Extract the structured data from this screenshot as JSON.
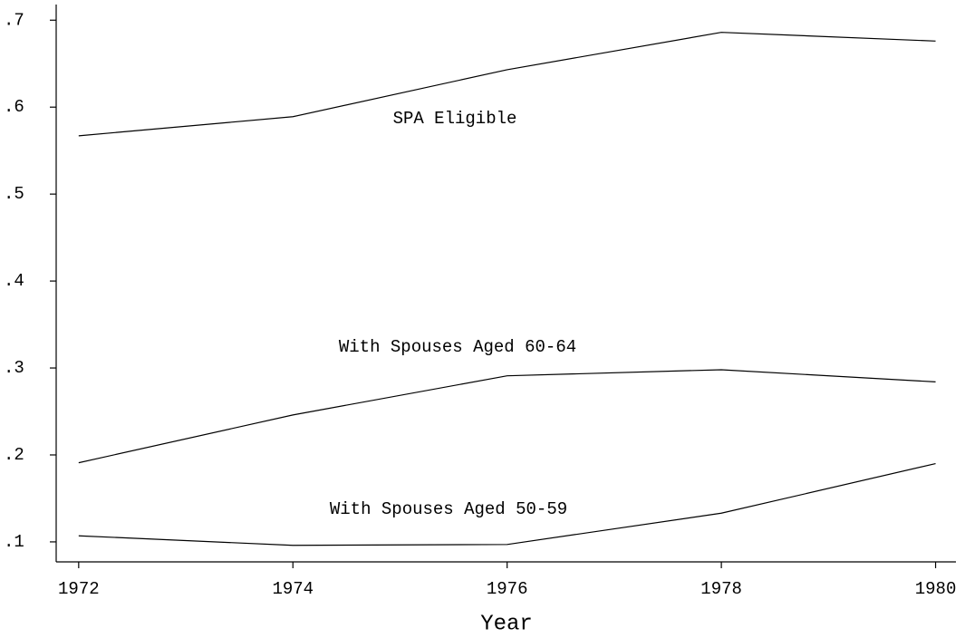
{
  "chart_data": {
    "type": "line",
    "x_label": "Year",
    "x": [
      1972,
      1974,
      1976,
      1978,
      1980
    ],
    "series": [
      {
        "name": "SPA Eligible",
        "color": "#000000",
        "values": [
          0.567,
          0.589,
          0.643,
          0.686,
          0.676
        ]
      },
      {
        "name": "With Spouses Aged 60-64",
        "color": "#000000",
        "values": [
          0.191,
          0.246,
          0.291,
          0.298,
          0.284
        ]
      },
      {
        "name": "With Spouses Aged 50-59",
        "color": "#000000",
        "values": [
          0.107,
          0.096,
          0.097,
          0.133,
          0.19
        ]
      }
    ],
    "xlim": [
      1971.79,
      1980.19
    ],
    "xticks": [
      1972,
      1974,
      1976,
      1978,
      1980
    ],
    "ylim": [
      0.077,
      0.718
    ],
    "yticks": [
      {
        "value": 0.1,
        "label": ".1"
      },
      {
        "value": 0.2,
        "label": ".2"
      },
      {
        "value": 0.3,
        "label": ".3"
      },
      {
        "value": 0.4,
        "label": ".4"
      },
      {
        "value": 0.5,
        "label": ".5"
      },
      {
        "value": 0.6,
        "label": ".6"
      },
      {
        "value": 0.7,
        "label": ".7"
      }
    ],
    "grid": false
  }
}
